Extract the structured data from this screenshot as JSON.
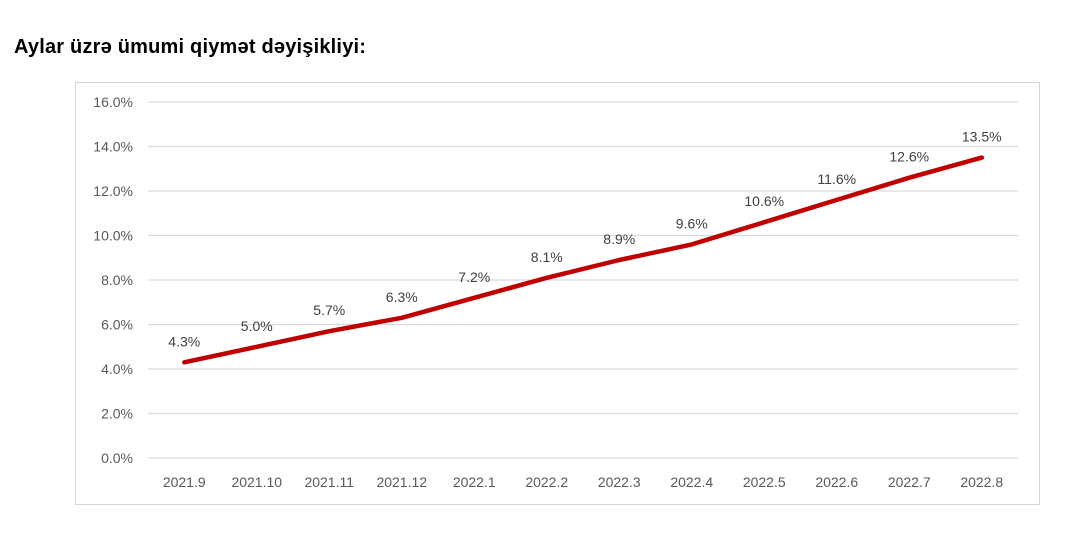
{
  "title": "Aylar üzrə ümumi qiymət dəyişikliyi:",
  "chart_data": {
    "type": "line",
    "title": "Aylar üzrə ümumi qiymət dəyişikliyi:",
    "categories": [
      "2021.9",
      "2021.10",
      "2021.11",
      "2021.12",
      "2022.1",
      "2022.2",
      "2022.3",
      "2022.4",
      "2022.5",
      "2022.6",
      "2022.7",
      "2022.8"
    ],
    "values": [
      4.3,
      5.0,
      5.7,
      6.3,
      7.2,
      8.1,
      8.9,
      9.6,
      10.6,
      11.6,
      12.6,
      13.5
    ],
    "data_labels": [
      "4.3%",
      "5.0%",
      "5.7%",
      "6.3%",
      "7.2%",
      "8.1%",
      "8.9%",
      "9.6%",
      "10.6%",
      "11.6%",
      "12.6%",
      "13.5%"
    ],
    "y_ticks": [
      "0.0%",
      "2.0%",
      "4.0%",
      "6.0%",
      "8.0%",
      "10.0%",
      "12.0%",
      "14.0%",
      "16.0%"
    ],
    "ylim": [
      0,
      16
    ],
    "xlabel": "",
    "ylabel": "",
    "grid": true,
    "legend": "none",
    "line_color": "#C00000",
    "gridline_color": "#D9D9D9",
    "axis_label_color": "#595959",
    "data_label_color": "#404040",
    "frame_border_color": "#D4D4D4",
    "background_color": "#FFFFFF"
  }
}
